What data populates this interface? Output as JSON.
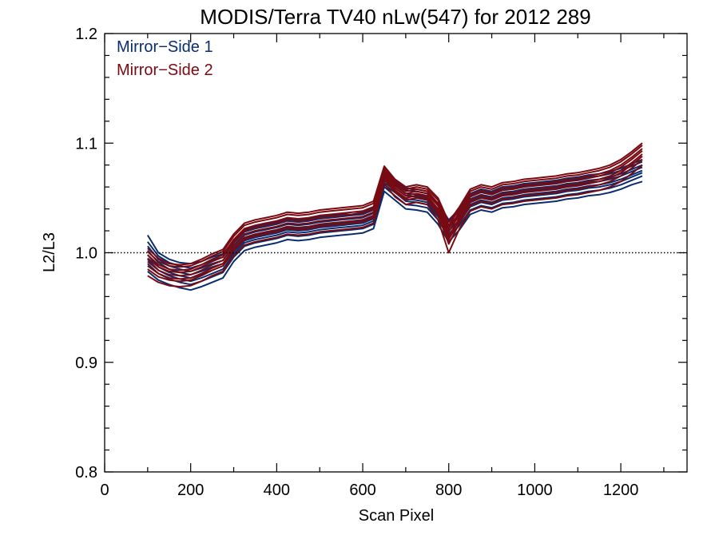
{
  "chart_data": {
    "type": "line",
    "title": "MODIS/Terra TV40 nLw(547) for 2012 289",
    "xlabel": "Scan Pixel",
    "ylabel": "L2/L3",
    "xlim": [
      0,
      1354
    ],
    "ylim": [
      0.8,
      1.2
    ],
    "x_ticks": [
      0,
      200,
      400,
      600,
      800,
      1000,
      1200
    ],
    "x_tick_labels": [
      "0",
      "200",
      "400",
      "600",
      "800",
      "1000",
      "1200"
    ],
    "y_ticks": [
      0.8,
      0.9,
      1.0,
      1.1,
      1.2
    ],
    "y_tick_labels": [
      "0.8",
      "0.9",
      "1.0",
      "1.1",
      "1.2"
    ],
    "reference_line": {
      "y": 1.0,
      "style": "dotted"
    },
    "grid": false,
    "legend": {
      "placement": "top-left",
      "entries": [
        {
          "label": "Mirror−Side 1",
          "color": "#0a2d6e"
        },
        {
          "label": "Mirror−Side 2",
          "color": "#7a0a12"
        }
      ]
    },
    "x": [
      100,
      125,
      150,
      175,
      200,
      225,
      250,
      275,
      300,
      325,
      350,
      375,
      400,
      425,
      450,
      475,
      500,
      525,
      550,
      575,
      600,
      625,
      650,
      675,
      700,
      725,
      750,
      775,
      800,
      825,
      850,
      875,
      900,
      925,
      950,
      975,
      1000,
      1025,
      1050,
      1075,
      1100,
      1125,
      1150,
      1175,
      1200,
      1225,
      1250
    ],
    "series": [
      {
        "group": 1,
        "color": "#0a2d6e",
        "values": [
          1.016,
          1.0,
          0.994,
          0.991,
          0.99,
          0.992,
          0.996,
          0.999,
          1.011,
          1.021,
          1.024,
          1.026,
          1.028,
          1.031,
          1.03,
          1.031,
          1.033,
          1.034,
          1.035,
          1.035,
          1.037,
          1.041,
          1.073,
          1.066,
          1.059,
          1.058,
          1.056,
          1.045,
          1.03,
          1.04,
          1.054,
          1.058,
          1.056,
          1.06,
          1.061,
          1.063,
          1.064,
          1.065,
          1.066,
          1.068,
          1.069,
          1.071,
          1.072,
          1.074,
          1.077,
          1.081,
          1.085
        ]
      },
      {
        "group": 1,
        "color": "#0a2d6e",
        "values": [
          1.006,
          0.994,
          0.988,
          0.985,
          0.983,
          0.986,
          0.99,
          0.993,
          1.006,
          1.016,
          1.019,
          1.021,
          1.023,
          1.026,
          1.025,
          1.026,
          1.028,
          1.029,
          1.03,
          1.031,
          1.032,
          1.036,
          1.069,
          1.062,
          1.054,
          1.053,
          1.051,
          1.04,
          1.025,
          1.035,
          1.049,
          1.053,
          1.051,
          1.055,
          1.056,
          1.058,
          1.059,
          1.06,
          1.061,
          1.063,
          1.064,
          1.066,
          1.067,
          1.069,
          1.072,
          1.076,
          1.08
        ]
      },
      {
        "group": 1,
        "color": "#0a2d6e",
        "values": [
          0.998,
          0.987,
          0.982,
          0.979,
          0.977,
          0.98,
          0.984,
          0.988,
          1.001,
          1.011,
          1.014,
          1.016,
          1.018,
          1.021,
          1.02,
          1.021,
          1.023,
          1.024,
          1.025,
          1.026,
          1.027,
          1.031,
          1.064,
          1.057,
          1.049,
          1.048,
          1.046,
          1.035,
          1.02,
          1.03,
          1.044,
          1.048,
          1.046,
          1.05,
          1.051,
          1.053,
          1.054,
          1.055,
          1.056,
          1.058,
          1.059,
          1.061,
          1.062,
          1.064,
          1.067,
          1.071,
          1.075
        ]
      },
      {
        "group": 1,
        "color": "#0a2d6e",
        "values": [
          0.99,
          0.981,
          0.976,
          0.973,
          0.971,
          0.974,
          0.978,
          0.982,
          0.996,
          1.006,
          1.009,
          1.011,
          1.013,
          1.016,
          1.015,
          1.016,
          1.018,
          1.019,
          1.02,
          1.021,
          1.022,
          1.026,
          1.06,
          1.052,
          1.044,
          1.043,
          1.041,
          1.03,
          1.014,
          1.025,
          1.039,
          1.043,
          1.041,
          1.045,
          1.046,
          1.048,
          1.049,
          1.05,
          1.051,
          1.053,
          1.054,
          1.056,
          1.057,
          1.059,
          1.062,
          1.066,
          1.07
        ]
      },
      {
        "group": 1,
        "color": "#0a2d6e",
        "values": [
          0.983,
          0.975,
          0.971,
          0.968,
          0.966,
          0.969,
          0.973,
          0.977,
          0.992,
          1.002,
          1.005,
          1.007,
          1.009,
          1.012,
          1.011,
          1.012,
          1.014,
          1.015,
          1.016,
          1.017,
          1.018,
          1.022,
          1.056,
          1.048,
          1.04,
          1.039,
          1.037,
          1.026,
          1.01,
          1.021,
          1.035,
          1.039,
          1.037,
          1.041,
          1.042,
          1.044,
          1.045,
          1.046,
          1.047,
          1.049,
          1.05,
          1.052,
          1.053,
          1.055,
          1.058,
          1.062,
          1.065
        ]
      },
      {
        "group": 1,
        "color": "#0a2d6e",
        "values": [
          1.01,
          0.997,
          0.991,
          0.988,
          0.986,
          0.989,
          0.993,
          0.996,
          1.009,
          1.019,
          1.022,
          1.024,
          1.026,
          1.029,
          1.028,
          1.029,
          1.031,
          1.032,
          1.033,
          1.034,
          1.035,
          1.039,
          1.071,
          1.064,
          1.057,
          1.056,
          1.054,
          1.043,
          1.028,
          1.038,
          1.052,
          1.056,
          1.054,
          1.058,
          1.059,
          1.061,
          1.062,
          1.063,
          1.064,
          1.066,
          1.067,
          1.069,
          1.07,
          1.072,
          1.075,
          1.079,
          1.083
        ]
      },
      {
        "group": 1,
        "color": "#0a2d6e",
        "values": [
          0.994,
          0.984,
          0.979,
          0.976,
          0.974,
          0.977,
          0.981,
          0.985,
          0.999,
          1.009,
          1.012,
          1.014,
          1.016,
          1.019,
          1.018,
          1.019,
          1.021,
          1.022,
          1.023,
          1.024,
          1.025,
          1.029,
          1.062,
          1.055,
          1.047,
          1.046,
          1.044,
          1.033,
          1.017,
          1.028,
          1.042,
          1.046,
          1.044,
          1.048,
          1.049,
          1.051,
          1.052,
          1.053,
          1.054,
          1.056,
          1.057,
          1.059,
          1.06,
          1.062,
          1.065,
          1.069,
          1.073
        ]
      },
      {
        "group": 1,
        "color": "#0a2d6e",
        "values": [
          1.002,
          0.991,
          0.985,
          0.982,
          0.98,
          0.983,
          0.987,
          0.99,
          1.003,
          1.013,
          1.016,
          1.018,
          1.02,
          1.023,
          1.022,
          1.023,
          1.025,
          1.026,
          1.027,
          1.028,
          1.029,
          1.033,
          1.066,
          1.059,
          1.052,
          1.051,
          1.049,
          1.038,
          1.023,
          1.033,
          1.047,
          1.051,
          1.049,
          1.053,
          1.054,
          1.056,
          1.057,
          1.058,
          1.059,
          1.061,
          1.062,
          1.064,
          1.065,
          1.067,
          1.07,
          1.074,
          1.078
        ]
      },
      {
        "group": 2,
        "color": "#7a0a12",
        "values": [
          1.004,
          0.995,
          0.99,
          0.989,
          0.99,
          0.994,
          0.999,
          1.003,
          1.017,
          1.027,
          1.03,
          1.032,
          1.034,
          1.037,
          1.036,
          1.037,
          1.039,
          1.04,
          1.041,
          1.042,
          1.043,
          1.047,
          1.079,
          1.067,
          1.06,
          1.062,
          1.06,
          1.05,
          1.028,
          1.042,
          1.058,
          1.062,
          1.06,
          1.064,
          1.065,
          1.067,
          1.068,
          1.069,
          1.07,
          1.072,
          1.073,
          1.075,
          1.077,
          1.08,
          1.085,
          1.092,
          1.1
        ]
      },
      {
        "group": 2,
        "color": "#7a0a12",
        "values": [
          0.998,
          0.989,
          0.985,
          0.984,
          0.985,
          0.989,
          0.994,
          0.998,
          1.012,
          1.022,
          1.025,
          1.027,
          1.029,
          1.032,
          1.031,
          1.032,
          1.034,
          1.035,
          1.036,
          1.037,
          1.038,
          1.042,
          1.075,
          1.063,
          1.056,
          1.058,
          1.056,
          1.045,
          1.022,
          1.037,
          1.053,
          1.057,
          1.055,
          1.059,
          1.06,
          1.062,
          1.063,
          1.064,
          1.065,
          1.067,
          1.068,
          1.07,
          1.072,
          1.075,
          1.08,
          1.087,
          1.095
        ]
      },
      {
        "group": 2,
        "color": "#7a0a12",
        "values": [
          0.992,
          0.984,
          0.98,
          0.979,
          0.98,
          0.984,
          0.989,
          0.993,
          1.007,
          1.017,
          1.02,
          1.022,
          1.024,
          1.027,
          1.026,
          1.027,
          1.029,
          1.03,
          1.031,
          1.032,
          1.033,
          1.037,
          1.071,
          1.059,
          1.052,
          1.054,
          1.052,
          1.04,
          1.015,
          1.032,
          1.048,
          1.052,
          1.05,
          1.054,
          1.055,
          1.057,
          1.058,
          1.059,
          1.06,
          1.062,
          1.063,
          1.065,
          1.067,
          1.07,
          1.075,
          1.082,
          1.09
        ]
      },
      {
        "group": 2,
        "color": "#7a0a12",
        "values": [
          0.985,
          0.978,
          0.975,
          0.974,
          0.975,
          0.979,
          0.984,
          0.988,
          1.002,
          1.012,
          1.015,
          1.017,
          1.019,
          1.022,
          1.021,
          1.022,
          1.024,
          1.025,
          1.026,
          1.027,
          1.028,
          1.032,
          1.067,
          1.055,
          1.048,
          1.05,
          1.048,
          1.035,
          1.008,
          1.027,
          1.043,
          1.047,
          1.045,
          1.049,
          1.05,
          1.052,
          1.053,
          1.054,
          1.055,
          1.057,
          1.058,
          1.06,
          1.062,
          1.065,
          1.07,
          1.077,
          1.085
        ]
      },
      {
        "group": 2,
        "color": "#7a0a12",
        "values": [
          0.979,
          0.973,
          0.97,
          0.969,
          0.97,
          0.974,
          0.979,
          0.983,
          0.997,
          1.007,
          1.01,
          1.012,
          1.014,
          1.017,
          1.016,
          1.017,
          1.019,
          1.02,
          1.021,
          1.022,
          1.023,
          1.027,
          1.063,
          1.051,
          1.044,
          1.046,
          1.044,
          1.03,
          1.0,
          1.022,
          1.038,
          1.042,
          1.04,
          1.044,
          1.045,
          1.047,
          1.048,
          1.049,
          1.05,
          1.052,
          1.053,
          1.055,
          1.057,
          1.06,
          1.065,
          1.072,
          1.08
        ]
      },
      {
        "group": 2,
        "color": "#7a0a12",
        "values": [
          1.001,
          0.992,
          0.988,
          0.987,
          0.988,
          0.992,
          0.997,
          1.001,
          1.015,
          1.025,
          1.028,
          1.03,
          1.032,
          1.035,
          1.034,
          1.035,
          1.037,
          1.038,
          1.039,
          1.04,
          1.041,
          1.045,
          1.077,
          1.065,
          1.058,
          1.06,
          1.058,
          1.048,
          1.025,
          1.04,
          1.056,
          1.06,
          1.058,
          1.062,
          1.063,
          1.065,
          1.066,
          1.067,
          1.068,
          1.07,
          1.071,
          1.073,
          1.075,
          1.078,
          1.083,
          1.09,
          1.098
        ]
      },
      {
        "group": 2,
        "color": "#7a0a12",
        "values": [
          0.988,
          0.981,
          0.977,
          0.976,
          0.977,
          0.981,
          0.986,
          0.99,
          1.004,
          1.014,
          1.017,
          1.019,
          1.021,
          1.024,
          1.023,
          1.024,
          1.026,
          1.027,
          1.028,
          1.029,
          1.03,
          1.034,
          1.069,
          1.057,
          1.05,
          1.052,
          1.05,
          1.037,
          1.012,
          1.03,
          1.046,
          1.05,
          1.048,
          1.052,
          1.053,
          1.055,
          1.056,
          1.057,
          1.058,
          1.06,
          1.061,
          1.063,
          1.065,
          1.068,
          1.073,
          1.08,
          1.088
        ]
      },
      {
        "group": 2,
        "color": "#7a0a12",
        "values": [
          0.995,
          0.987,
          0.983,
          0.982,
          0.983,
          0.987,
          0.992,
          0.996,
          1.01,
          1.02,
          1.023,
          1.025,
          1.027,
          1.03,
          1.029,
          1.03,
          1.032,
          1.033,
          1.034,
          1.035,
          1.036,
          1.04,
          1.073,
          1.061,
          1.054,
          1.056,
          1.054,
          1.043,
          1.019,
          1.035,
          1.051,
          1.055,
          1.053,
          1.057,
          1.058,
          1.06,
          1.061,
          1.062,
          1.063,
          1.065,
          1.066,
          1.068,
          1.07,
          1.073,
          1.078,
          1.085,
          1.093
        ]
      }
    ]
  }
}
